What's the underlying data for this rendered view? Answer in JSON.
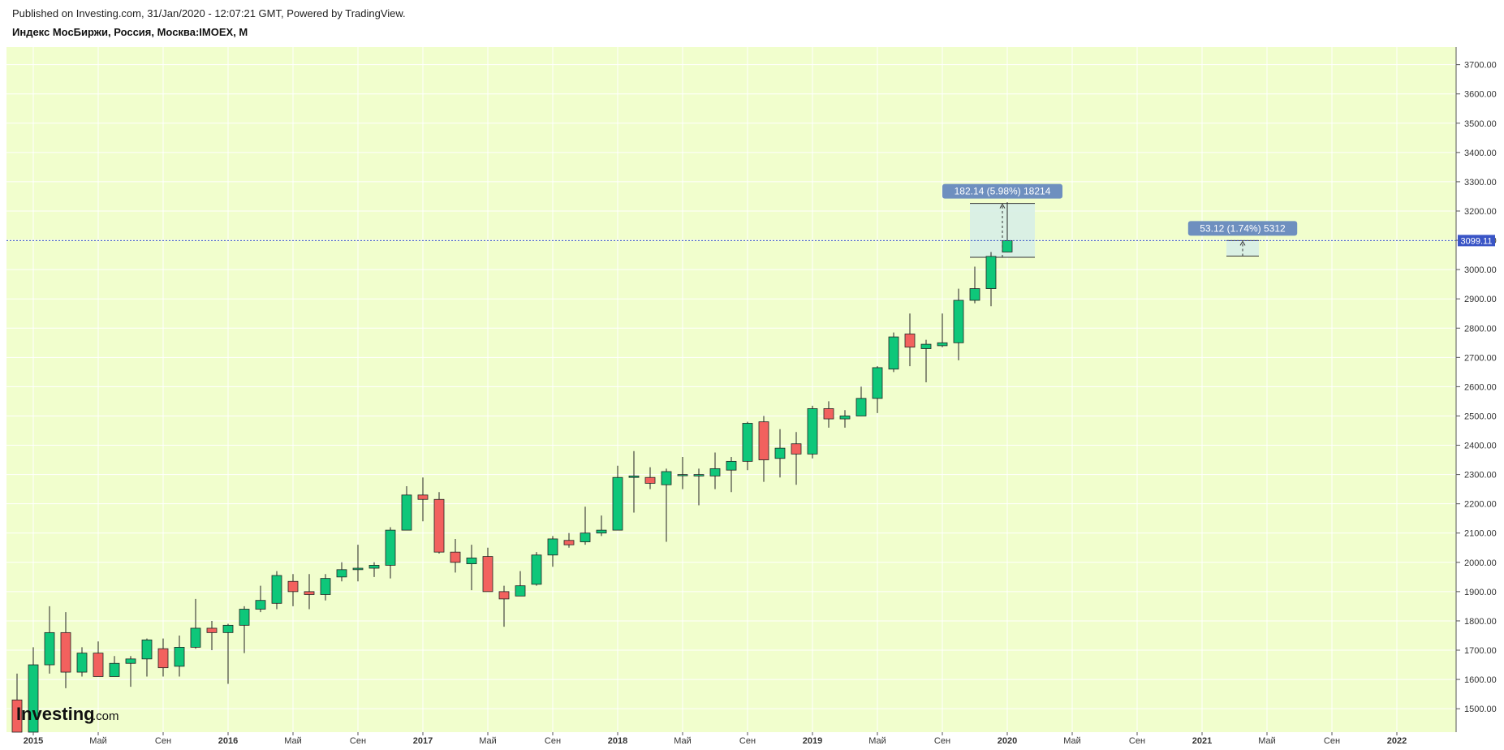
{
  "header": {
    "published": "Published on Investing.com, 31/Jan/2020 - 12:07:21 GMT, Powered by TradingView.",
    "instrument": "Индекс МосБиржи, Россия, Москва:IMOEX, M"
  },
  "watermark": {
    "main": "Investing",
    "suffix": ".com"
  },
  "colors": {
    "up": "#0ec77a",
    "down": "#f2615e",
    "background": "#f1fecd",
    "grid": "#ffffff",
    "price_line": "#3a55c6",
    "label_bg": "#6e8fbf",
    "measure_fill": "#d7eee7"
  },
  "chart_data": {
    "type": "candlestick",
    "interval": "M",
    "ylim": [
      1420,
      3760
    ],
    "y_ticks": [
      1500,
      1600,
      1700,
      1800,
      1900,
      2000,
      2100,
      2200,
      2300,
      2400,
      2500,
      2600,
      2700,
      2800,
      2900,
      3000,
      3100,
      3200,
      3300,
      3400,
      3500,
      3600,
      3700
    ],
    "y_tick_labels": [
      "1500.00",
      "1600.00",
      "1700.00",
      "1800.00",
      "1900.00",
      "2000.00",
      "2100.00",
      "2200.00",
      "2300.00",
      "2400.00",
      "2500.00",
      "2600.00",
      "2700.00",
      "2800.00",
      "2900.00",
      "3000.00",
      "3100.00",
      "3200.00",
      "3300.00",
      "3400.00",
      "3500.00",
      "3600.00",
      "3700.00"
    ],
    "x_labels": [
      {
        "label": "2015",
        "month": 0,
        "bold": true
      },
      {
        "label": "Май",
        "month": 4
      },
      {
        "label": "Сен",
        "month": 8
      },
      {
        "label": "2016",
        "month": 12,
        "bold": true
      },
      {
        "label": "Май",
        "month": 16
      },
      {
        "label": "Сен",
        "month": 20
      },
      {
        "label": "2017",
        "month": 24,
        "bold": true
      },
      {
        "label": "Май",
        "month": 28
      },
      {
        "label": "Сен",
        "month": 32
      },
      {
        "label": "2018",
        "month": 36,
        "bold": true
      },
      {
        "label": "Май",
        "month": 40
      },
      {
        "label": "Сен",
        "month": 44
      },
      {
        "label": "2019",
        "month": 48,
        "bold": true
      },
      {
        "label": "Май",
        "month": 52
      },
      {
        "label": "Сен",
        "month": 56
      },
      {
        "label": "2020",
        "month": 60,
        "bold": true
      },
      {
        "label": "Май",
        "month": 64
      },
      {
        "label": "Сен",
        "month": 68
      },
      {
        "label": "2021",
        "month": 72,
        "bold": true
      },
      {
        "label": "Май",
        "month": 76
      },
      {
        "label": "Сен",
        "month": 80
      },
      {
        "label": "2022",
        "month": 84,
        "bold": true
      }
    ],
    "candles": [
      {
        "date": "2014-12",
        "o": 1530,
        "h": 1620,
        "l": 1410,
        "c": 1420
      },
      {
        "date": "2015-01",
        "o": 1420,
        "h": 1710,
        "l": 1410,
        "c": 1650
      },
      {
        "date": "2015-02",
        "o": 1650,
        "h": 1850,
        "l": 1620,
        "c": 1760
      },
      {
        "date": "2015-03",
        "o": 1760,
        "h": 1830,
        "l": 1570,
        "c": 1625
      },
      {
        "date": "2015-04",
        "o": 1625,
        "h": 1710,
        "l": 1610,
        "c": 1690
      },
      {
        "date": "2015-05",
        "o": 1690,
        "h": 1730,
        "l": 1610,
        "c": 1610
      },
      {
        "date": "2015-06",
        "o": 1610,
        "h": 1680,
        "l": 1610,
        "c": 1655
      },
      {
        "date": "2015-07",
        "o": 1655,
        "h": 1680,
        "l": 1575,
        "c": 1670
      },
      {
        "date": "2015-08",
        "o": 1670,
        "h": 1740,
        "l": 1610,
        "c": 1735
      },
      {
        "date": "2015-09",
        "o": 1705,
        "h": 1740,
        "l": 1610,
        "c": 1640
      },
      {
        "date": "2015-10",
        "o": 1645,
        "h": 1750,
        "l": 1610,
        "c": 1710
      },
      {
        "date": "2015-11",
        "o": 1710,
        "h": 1875,
        "l": 1705,
        "c": 1775
      },
      {
        "date": "2015-12",
        "o": 1775,
        "h": 1800,
        "l": 1700,
        "c": 1760
      },
      {
        "date": "2016-01",
        "o": 1760,
        "h": 1790,
        "l": 1585,
        "c": 1785
      },
      {
        "date": "2016-02",
        "o": 1785,
        "h": 1850,
        "l": 1690,
        "c": 1840
      },
      {
        "date": "2016-03",
        "o": 1840,
        "h": 1920,
        "l": 1830,
        "c": 1870
      },
      {
        "date": "2016-04",
        "o": 1860,
        "h": 1970,
        "l": 1840,
        "c": 1955
      },
      {
        "date": "2016-05",
        "o": 1935,
        "h": 1960,
        "l": 1850,
        "c": 1900
      },
      {
        "date": "2016-06",
        "o": 1900,
        "h": 1960,
        "l": 1840,
        "c": 1890
      },
      {
        "date": "2016-07",
        "o": 1890,
        "h": 1960,
        "l": 1870,
        "c": 1945
      },
      {
        "date": "2016-08",
        "o": 1950,
        "h": 2000,
        "l": 1935,
        "c": 1975
      },
      {
        "date": "2016-09",
        "o": 1975,
        "h": 2060,
        "l": 1935,
        "c": 1980
      },
      {
        "date": "2016-10",
        "o": 1980,
        "h": 2000,
        "l": 1950,
        "c": 1990
      },
      {
        "date": "2016-11",
        "o": 1990,
        "h": 2120,
        "l": 1945,
        "c": 2110
      },
      {
        "date": "2016-12",
        "o": 2110,
        "h": 2260,
        "l": 2110,
        "c": 2230
      },
      {
        "date": "2017-01",
        "o": 2230,
        "h": 2290,
        "l": 2140,
        "c": 2215
      },
      {
        "date": "2017-02",
        "o": 2215,
        "h": 2240,
        "l": 2030,
        "c": 2035
      },
      {
        "date": "2017-03",
        "o": 2035,
        "h": 2080,
        "l": 1965,
        "c": 2000
      },
      {
        "date": "2017-04",
        "o": 1995,
        "h": 2060,
        "l": 1905,
        "c": 2015
      },
      {
        "date": "2017-05",
        "o": 2020,
        "h": 2050,
        "l": 1900,
        "c": 1900
      },
      {
        "date": "2017-06",
        "o": 1900,
        "h": 1920,
        "l": 1780,
        "c": 1875
      },
      {
        "date": "2017-07",
        "o": 1885,
        "h": 1970,
        "l": 1885,
        "c": 1920
      },
      {
        "date": "2017-08",
        "o": 1925,
        "h": 2035,
        "l": 1920,
        "c": 2025
      },
      {
        "date": "2017-09",
        "o": 2025,
        "h": 2090,
        "l": 1985,
        "c": 2080
      },
      {
        "date": "2017-10",
        "o": 2075,
        "h": 2100,
        "l": 2050,
        "c": 2060
      },
      {
        "date": "2017-11",
        "o": 2070,
        "h": 2190,
        "l": 2060,
        "c": 2100
      },
      {
        "date": "2017-12",
        "o": 2100,
        "h": 2160,
        "l": 2090,
        "c": 2110
      },
      {
        "date": "2018-01",
        "o": 2110,
        "h": 2330,
        "l": 2110,
        "c": 2290
      },
      {
        "date": "2018-02",
        "o": 2290,
        "h": 2380,
        "l": 2170,
        "c": 2295
      },
      {
        "date": "2018-03",
        "o": 2290,
        "h": 2325,
        "l": 2250,
        "c": 2270
      },
      {
        "date": "2018-04",
        "o": 2265,
        "h": 2320,
        "l": 2070,
        "c": 2310
      },
      {
        "date": "2018-05",
        "o": 2300,
        "h": 2360,
        "l": 2250,
        "c": 2300
      },
      {
        "date": "2018-06",
        "o": 2295,
        "h": 2320,
        "l": 2195,
        "c": 2300
      },
      {
        "date": "2018-07",
        "o": 2295,
        "h": 2375,
        "l": 2250,
        "c": 2320
      },
      {
        "date": "2018-08",
        "o": 2315,
        "h": 2360,
        "l": 2240,
        "c": 2345
      },
      {
        "date": "2018-09",
        "o": 2345,
        "h": 2480,
        "l": 2315,
        "c": 2475
      },
      {
        "date": "2018-10",
        "o": 2480,
        "h": 2500,
        "l": 2275,
        "c": 2350
      },
      {
        "date": "2018-11",
        "o": 2355,
        "h": 2455,
        "l": 2290,
        "c": 2390
      },
      {
        "date": "2018-12",
        "o": 2405,
        "h": 2445,
        "l": 2265,
        "c": 2370
      },
      {
        "date": "2019-01",
        "o": 2370,
        "h": 2535,
        "l": 2355,
        "c": 2525
      },
      {
        "date": "2019-02",
        "o": 2525,
        "h": 2550,
        "l": 2460,
        "c": 2490
      },
      {
        "date": "2019-03",
        "o": 2490,
        "h": 2520,
        "l": 2460,
        "c": 2500
      },
      {
        "date": "2019-04",
        "o": 2500,
        "h": 2600,
        "l": 2500,
        "c": 2560
      },
      {
        "date": "2019-05",
        "o": 2560,
        "h": 2670,
        "l": 2510,
        "c": 2665
      },
      {
        "date": "2019-06",
        "o": 2660,
        "h": 2785,
        "l": 2650,
        "c": 2770
      },
      {
        "date": "2019-07",
        "o": 2780,
        "h": 2850,
        "l": 2670,
        "c": 2735
      },
      {
        "date": "2019-08",
        "o": 2730,
        "h": 2760,
        "l": 2615,
        "c": 2745
      },
      {
        "date": "2019-09",
        "o": 2740,
        "h": 2850,
        "l": 2735,
        "c": 2750
      },
      {
        "date": "2019-10",
        "o": 2750,
        "h": 2935,
        "l": 2690,
        "c": 2895
      },
      {
        "date": "2019-11",
        "o": 2895,
        "h": 3010,
        "l": 2885,
        "c": 2935
      },
      {
        "date": "2019-12",
        "o": 2935,
        "h": 3060,
        "l": 2875,
        "c": 3045
      },
      {
        "date": "2020-01",
        "o": 3060,
        "h": 3230,
        "l": 3060,
        "c": 3099.11
      }
    ],
    "current_price": {
      "value": 3099.11,
      "label": "3099.11"
    },
    "measure_tools": [
      {
        "label": "182.14 (5.98%) 18214",
        "x_start_month": 57.7,
        "x_end_month": 61.7,
        "y_low": 3042,
        "y_high": 3226
      },
      {
        "label": "53.12 (1.74%) 5312",
        "x_start_month": 73.5,
        "x_end_month": 75.5,
        "y_low": 3046,
        "y_high": 3099
      }
    ]
  }
}
